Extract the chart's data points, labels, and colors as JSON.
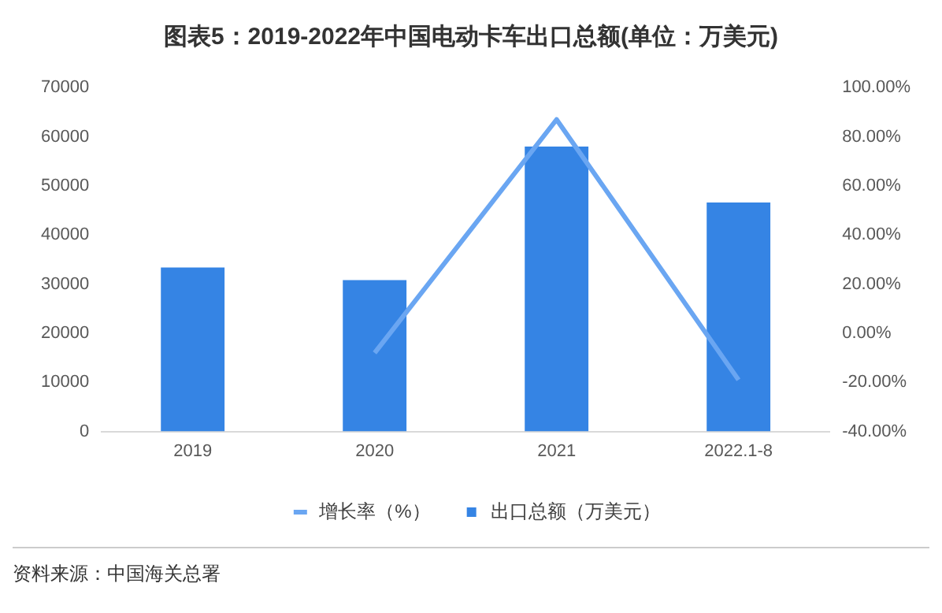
{
  "chart_data": {
    "type": "bar",
    "title": "图表5：2019-2022年中国电动卡车出口总额(单位：万美元)",
    "categories": [
      "2019",
      "2020",
      "2021",
      "2022.1-8"
    ],
    "series": [
      {
        "name": "出口总额（万美元）",
        "color": "#3584e4",
        "values": [
          33400,
          30800,
          58000,
          46600
        ]
      },
      {
        "name": "增长率（%）",
        "type": "line",
        "axis": "y2",
        "color": "#6aa6f2",
        "values": [
          null,
          -8,
          87,
          -19
        ],
        "marker": "none",
        "line_style": "solid"
      }
    ],
    "ylim": [
      0,
      70000
    ],
    "yticks": [
      0,
      10000,
      20000,
      30000,
      40000,
      50000,
      60000,
      70000
    ],
    "y2lim": [
      -40,
      100
    ],
    "y2ticks": [
      {
        "value": -40,
        "label": "-40.00%"
      },
      {
        "value": -20,
        "label": "-20.00%"
      },
      {
        "value": 0,
        "label": "0.00%"
      },
      {
        "value": 20,
        "label": "20.00%"
      },
      {
        "value": 40,
        "label": "40.00%"
      },
      {
        "value": 60,
        "label": "60.00%"
      },
      {
        "value": 80,
        "label": "80.00%"
      },
      {
        "value": 100,
        "label": "100.00%"
      }
    ],
    "grid": false,
    "legend": "bottom",
    "annotations": [
      "资料来源：中国海关总署"
    ]
  }
}
